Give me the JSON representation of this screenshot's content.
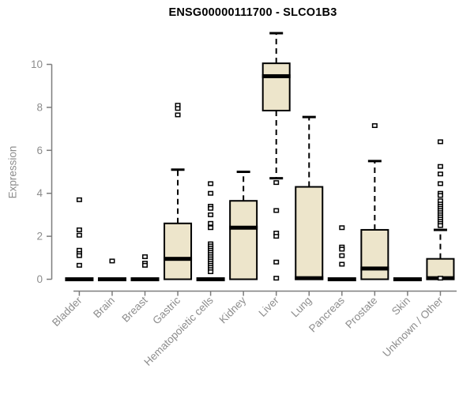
{
  "chart_data": {
    "type": "boxplot",
    "title": "ENSG00000111700 - SLCO1B3",
    "ylabel": "Expression",
    "xlabel": "",
    "ylim": [
      0,
      11.6
    ],
    "yticks": [
      0,
      2,
      4,
      6,
      8,
      10
    ],
    "grid": false,
    "legend_position": "none",
    "colors": {
      "background": "#ffffff",
      "box_fill": "#ede5cb",
      "box_border": "#000000",
      "median": "#000000",
      "whisker": "#000000",
      "outlier_fill": "#ffffff",
      "axis": "#7d7d7d",
      "tick_text": "#8d8d8d",
      "title_text": "#000000"
    },
    "categories": [
      "Bladder",
      "Brain",
      "Breast",
      "Gastric",
      "Hematopoietic cells",
      "Kidney",
      "Liver",
      "Lung",
      "Pancreas",
      "Prostate",
      "Skin",
      "Unknown / Other"
    ],
    "series": [
      {
        "name": "Bladder",
        "whisker_low": 0,
        "q1": 0,
        "median": 0,
        "q3": 0,
        "whisker_high": 0,
        "outliers": [
          3.7,
          2.3,
          2.05,
          1.35,
          1.2,
          1.1,
          0.65
        ]
      },
      {
        "name": "Brain",
        "whisker_low": 0,
        "q1": 0,
        "median": 0,
        "q3": 0,
        "whisker_high": 0,
        "outliers": [
          0.85
        ]
      },
      {
        "name": "Breast",
        "whisker_low": 0,
        "q1": 0,
        "median": 0,
        "q3": 0,
        "whisker_high": 0,
        "outliers": [
          1.05,
          0.75,
          0.65
        ]
      },
      {
        "name": "Gastric",
        "whisker_low": 0,
        "q1": 0,
        "median": 0.95,
        "q3": 2.6,
        "whisker_high": 5.1,
        "outliers": [
          8.1,
          7.95,
          7.65
        ]
      },
      {
        "name": "Hematopoietic cells",
        "whisker_low": 0,
        "q1": 0,
        "median": 0,
        "q3": 0,
        "whisker_high": 0,
        "outliers": [
          4.45,
          4.0,
          3.4,
          3.3,
          3.0,
          2.6,
          2.4,
          1.65,
          1.55,
          1.45,
          1.35,
          1.25,
          1.15,
          1.05,
          0.95,
          0.85,
          0.75,
          0.65,
          0.55,
          0.45,
          0.35
        ]
      },
      {
        "name": "Kidney",
        "whisker_low": 0,
        "q1": 0,
        "median": 2.4,
        "q3": 3.65,
        "whisker_high": 5.0,
        "outliers": []
      },
      {
        "name": "Liver",
        "whisker_low": 4.7,
        "q1": 7.85,
        "median": 9.45,
        "q3": 10.05,
        "whisker_high": 11.45,
        "outliers": [
          4.5,
          3.2,
          2.15,
          2.0,
          0.8,
          0.05
        ]
      },
      {
        "name": "Lung",
        "whisker_low": 0,
        "q1": 0,
        "median": 0.05,
        "q3": 4.3,
        "whisker_high": 7.55,
        "outliers": []
      },
      {
        "name": "Pancreas",
        "whisker_low": 0,
        "q1": 0,
        "median": 0,
        "q3": 0,
        "whisker_high": 0,
        "outliers": [
          2.4,
          1.5,
          1.4,
          1.1,
          0.7
        ]
      },
      {
        "name": "Prostate",
        "whisker_low": 0,
        "q1": 0,
        "median": 0.5,
        "q3": 2.3,
        "whisker_high": 5.5,
        "outliers": [
          7.15
        ]
      },
      {
        "name": "Skin",
        "whisker_low": 0,
        "q1": 0,
        "median": 0,
        "q3": 0,
        "whisker_high": 0,
        "outliers": []
      },
      {
        "name": "Unknown / Other",
        "whisker_low": 0,
        "q1": 0,
        "median": 0.05,
        "q3": 0.95,
        "whisker_high": 2.3,
        "outliers": [
          6.4,
          5.25,
          4.9,
          4.45,
          4.0,
          3.9,
          3.65,
          3.5,
          3.4,
          3.3,
          3.2,
          3.1,
          3.0,
          2.9,
          2.8,
          2.7,
          2.6,
          2.5,
          0.05
        ]
      }
    ]
  }
}
